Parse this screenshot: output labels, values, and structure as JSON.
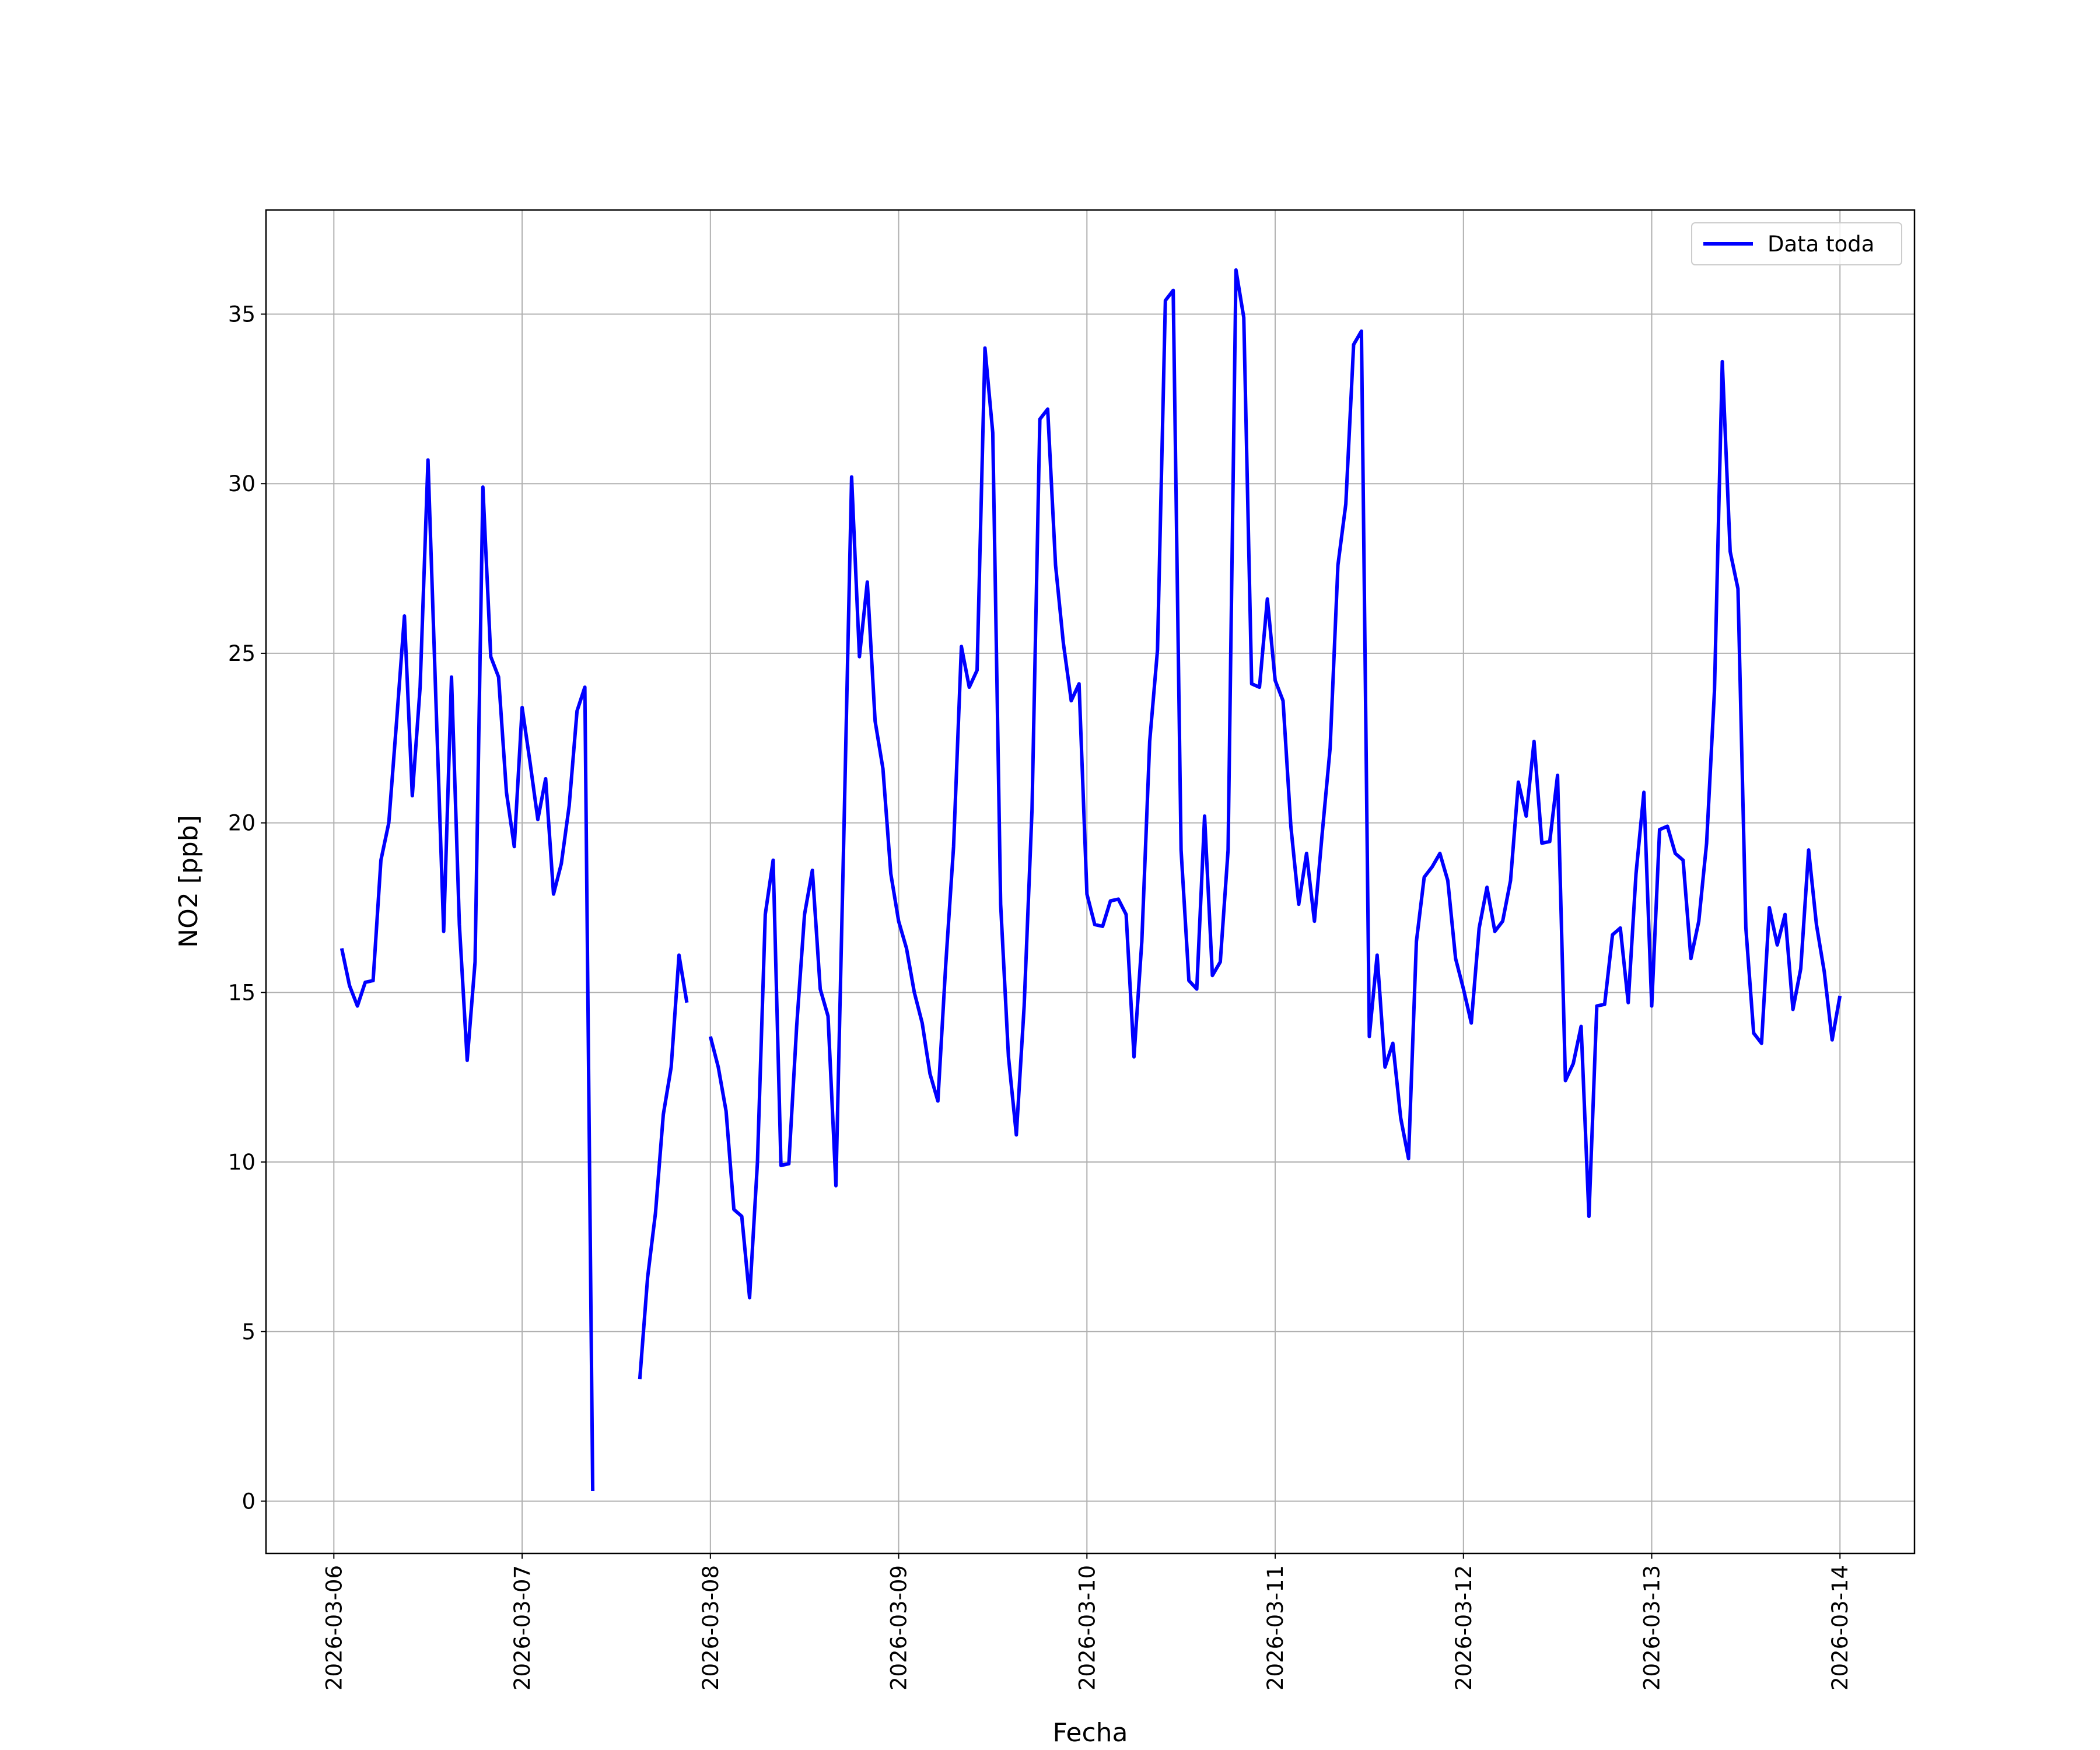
{
  "chart_data": {
    "type": "line",
    "x_label": "Fecha",
    "y_label": "NO2 [ppb]",
    "xlim": [
      "2026-03-05T15:21",
      "2026-03-14T09:30"
    ],
    "xticks": [
      "2026-03-06",
      "2026-03-07",
      "2026-03-08",
      "2026-03-09",
      "2026-03-10",
      "2026-03-11",
      "2026-03-12",
      "2026-03-13",
      "2026-03-14"
    ],
    "ylim": [
      -1.54,
      38.07
    ],
    "yticks": [
      0,
      5,
      10,
      15,
      20,
      25,
      30,
      35
    ],
    "grid": true,
    "legend": "upper right",
    "start": "2026-03-06T01:00",
    "step_hours": 1,
    "series": [
      {
        "name": "Data toda",
        "color": "#0000ff",
        "values": [
          16.3,
          15.2,
          14.6,
          15.3,
          15.35,
          18.9,
          20.0,
          23.0,
          26.1,
          20.8,
          24.0,
          30.7,
          23.7,
          16.8,
          24.3,
          17.0,
          13.0,
          15.9,
          29.9,
          24.9,
          24.3,
          20.9,
          19.3,
          23.4,
          21.8,
          20.1,
          21.3,
          17.9,
          18.8,
          20.5,
          23.3,
          24.0,
          0.3,
          null,
          null,
          null,
          null,
          null,
          3.6,
          6.6,
          8.5,
          11.4,
          12.8,
          16.1,
          14.7,
          null,
          null,
          13.7,
          12.8,
          11.5,
          8.6,
          8.4,
          6.0,
          10.0,
          17.3,
          18.9,
          9.9,
          9.95,
          14.0,
          17.3,
          18.6,
          15.1,
          14.3,
          9.3,
          19.5,
          30.2,
          24.9,
          27.1,
          23.0,
          21.6,
          18.5,
          17.1,
          16.3,
          15.0,
          14.1,
          12.6,
          11.8,
          15.8,
          19.3,
          25.2,
          24.0,
          24.5,
          34.0,
          31.5,
          17.6,
          13.1,
          10.8,
          14.6,
          20.4,
          31.9,
          32.2,
          27.6,
          25.3,
          23.6,
          24.1,
          17.9,
          17.0,
          16.95,
          17.7,
          17.75,
          17.3,
          13.1,
          16.5,
          22.4,
          25.1,
          35.4,
          35.7,
          19.2,
          15.35,
          15.1,
          20.2,
          15.5,
          15.9,
          19.2,
          36.3,
          34.9,
          24.1,
          24.0,
          26.6,
          24.2,
          23.6,
          19.9,
          17.6,
          19.1,
          17.1,
          19.7,
          22.2,
          27.6,
          29.4,
          34.1,
          34.5,
          13.7,
          16.1,
          12.8,
          13.5,
          11.3,
          10.1,
          16.5,
          18.4,
          18.7,
          19.1,
          18.3,
          16.0,
          15.1,
          14.1,
          16.9,
          18.1,
          16.8,
          17.1,
          18.3,
          21.2,
          20.2,
          22.4,
          19.4,
          19.45,
          21.4,
          12.4,
          12.9,
          14.0,
          8.4,
          14.6,
          14.65,
          16.7,
          16.9,
          14.7,
          18.5,
          20.9,
          14.6,
          19.8,
          19.9,
          19.1,
          18.9,
          16.0,
          17.1,
          19.4,
          23.9,
          33.6,
          28.0,
          26.9,
          16.9,
          13.8,
          13.5,
          17.5,
          16.4,
          17.3,
          14.5,
          15.7,
          19.2,
          17.0,
          15.6,
          13.6,
          14.9
        ]
      }
    ]
  }
}
